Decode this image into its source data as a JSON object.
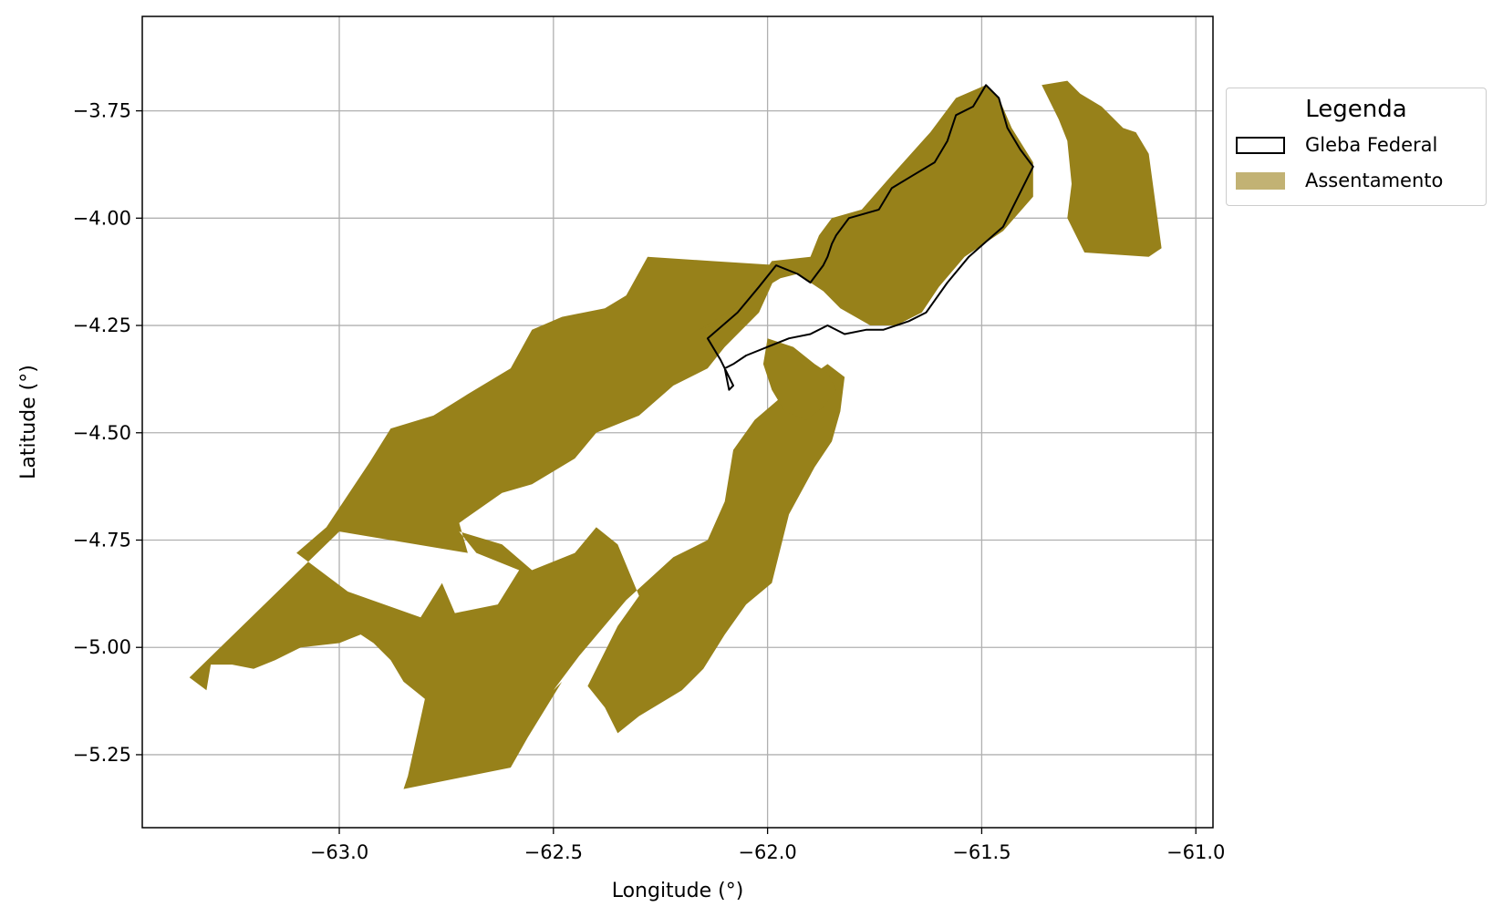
{
  "chart_data": {
    "type": "map",
    "xlabel": "Longitude (°)",
    "ylabel": "Latitude (°)",
    "xlim": [
      -63.46,
      -60.96
    ],
    "ylim": [
      -5.42,
      -3.53
    ],
    "xticks": [
      -63.0,
      -62.5,
      -62.0,
      -61.5,
      -61.0
    ],
    "xtick_labels": [
      "−63.0",
      "−62.5",
      "−62.0",
      "−61.5",
      "−61.0"
    ],
    "yticks": [
      -3.75,
      -4.0,
      -4.25,
      -4.5,
      -4.75,
      -5.0,
      -5.25
    ],
    "ytick_labels": [
      "−3.75",
      "−4.00",
      "−4.25",
      "−4.50",
      "−4.75",
      "−5.00",
      "−5.25"
    ],
    "grid": true,
    "legend": {
      "title": "Legenda",
      "placement": "outside-right",
      "items": [
        {
          "label": "Gleba Federal",
          "style": "outline",
          "color": "#000000"
        },
        {
          "label": "Assentamento",
          "style": "fill",
          "color": "#97811A"
        }
      ]
    },
    "layers": [
      {
        "name": "Assentamento",
        "fill": "#97811A",
        "polygons": [
          [
            [
              -63.35,
              -5.07
            ],
            [
              -63.31,
              -5.1
            ],
            [
              -63.3,
              -5.04
            ],
            [
              -63.25,
              -5.04
            ],
            [
              -63.2,
              -5.05
            ],
            [
              -63.15,
              -5.03
            ],
            [
              -63.09,
              -5.0
            ],
            [
              -63.0,
              -4.99
            ],
            [
              -62.95,
              -4.97
            ],
            [
              -62.92,
              -4.99
            ],
            [
              -62.88,
              -5.03
            ],
            [
              -62.85,
              -5.08
            ],
            [
              -62.8,
              -5.12
            ],
            [
              -62.84,
              -5.3
            ],
            [
              -62.85,
              -5.33
            ],
            [
              -62.6,
              -5.28
            ],
            [
              -62.56,
              -5.21
            ],
            [
              -62.48,
              -5.08
            ],
            [
              -62.5,
              -5.1
            ],
            [
              -62.44,
              -5.02
            ],
            [
              -62.33,
              -4.89
            ],
            [
              -62.22,
              -4.79
            ],
            [
              -62.14,
              -4.75
            ],
            [
              -62.1,
              -4.66
            ],
            [
              -62.08,
              -4.54
            ],
            [
              -62.03,
              -4.47
            ],
            [
              -61.96,
              -4.41
            ],
            [
              -61.86,
              -4.34
            ],
            [
              -61.82,
              -4.37
            ],
            [
              -61.83,
              -4.45
            ],
            [
              -61.85,
              -4.52
            ],
            [
              -61.89,
              -4.58
            ],
            [
              -61.95,
              -4.69
            ],
            [
              -61.99,
              -4.85
            ],
            [
              -62.05,
              -4.9
            ],
            [
              -62.1,
              -4.97
            ],
            [
              -62.15,
              -5.05
            ],
            [
              -62.2,
              -5.1
            ],
            [
              -62.3,
              -5.16
            ],
            [
              -62.35,
              -5.2
            ],
            [
              -62.38,
              -5.14
            ],
            [
              -62.42,
              -5.09
            ],
            [
              -62.35,
              -4.95
            ],
            [
              -62.3,
              -4.88
            ],
            [
              -62.35,
              -4.76
            ],
            [
              -62.4,
              -4.72
            ],
            [
              -62.45,
              -4.78
            ],
            [
              -62.55,
              -4.82
            ],
            [
              -62.62,
              -4.76
            ],
            [
              -62.72,
              -4.73
            ],
            [
              -62.68,
              -4.78
            ],
            [
              -62.58,
              -4.82
            ],
            [
              -62.63,
              -4.9
            ],
            [
              -62.73,
              -4.92
            ],
            [
              -62.76,
              -4.85
            ],
            [
              -62.81,
              -4.93
            ],
            [
              -62.98,
              -4.87
            ],
            [
              -63.1,
              -4.78
            ],
            [
              -63.03,
              -4.72
            ],
            [
              -62.93,
              -4.57
            ],
            [
              -62.88,
              -4.49
            ],
            [
              -62.78,
              -4.46
            ],
            [
              -62.7,
              -4.41
            ],
            [
              -62.6,
              -4.35
            ],
            [
              -62.55,
              -4.26
            ],
            [
              -62.48,
              -4.23
            ],
            [
              -62.38,
              -4.21
            ],
            [
              -62.33,
              -4.18
            ],
            [
              -62.28,
              -4.09
            ],
            [
              -62.13,
              -4.1
            ],
            [
              -61.97,
              -4.11
            ],
            [
              -62.02,
              -4.22
            ],
            [
              -62.1,
              -4.3
            ],
            [
              -62.14,
              -4.35
            ],
            [
              -62.22,
              -4.39
            ],
            [
              -62.3,
              -4.46
            ],
            [
              -62.4,
              -4.5
            ],
            [
              -62.45,
              -4.56
            ],
            [
              -62.55,
              -4.62
            ],
            [
              -62.62,
              -4.64
            ],
            [
              -62.72,
              -4.71
            ],
            [
              -62.7,
              -4.78
            ],
            [
              -63.0,
              -4.73
            ],
            [
              -63.35,
              -5.07
            ]
          ],
          [
            [
              -62.16,
              -4.26
            ],
            [
              -62.06,
              -4.2
            ],
            [
              -61.99,
              -4.1
            ],
            [
              -61.9,
              -4.09
            ],
            [
              -61.88,
              -4.04
            ],
            [
              -61.85,
              -4.0
            ],
            [
              -61.78,
              -3.98
            ],
            [
              -61.71,
              -3.9
            ],
            [
              -61.62,
              -3.8
            ],
            [
              -61.56,
              -3.72
            ],
            [
              -61.49,
              -3.69
            ],
            [
              -61.46,
              -3.72
            ],
            [
              -61.43,
              -3.79
            ],
            [
              -61.38,
              -3.87
            ],
            [
              -61.38,
              -3.95
            ],
            [
              -61.45,
              -4.03
            ],
            [
              -61.54,
              -4.09
            ],
            [
              -61.6,
              -4.16
            ],
            [
              -61.64,
              -4.22
            ],
            [
              -61.7,
              -4.25
            ],
            [
              -61.76,
              -4.25
            ],
            [
              -61.83,
              -4.21
            ],
            [
              -61.87,
              -4.17
            ],
            [
              -61.9,
              -4.15
            ],
            [
              -61.93,
              -4.13
            ],
            [
              -61.97,
              -4.14
            ],
            [
              -62.02,
              -4.17
            ],
            [
              -62.1,
              -4.24
            ],
            [
              -62.16,
              -4.26
            ]
          ],
          [
            [
              -61.36,
              -3.69
            ],
            [
              -61.3,
              -3.68
            ],
            [
              -61.27,
              -3.71
            ],
            [
              -61.22,
              -3.74
            ],
            [
              -61.17,
              -3.79
            ],
            [
              -61.14,
              -3.8
            ],
            [
              -61.11,
              -3.85
            ],
            [
              -61.08,
              -4.07
            ],
            [
              -61.11,
              -4.09
            ],
            [
              -61.26,
              -4.08
            ],
            [
              -61.3,
              -4.0
            ],
            [
              -61.29,
              -3.92
            ],
            [
              -61.3,
              -3.82
            ],
            [
              -61.32,
              -3.77
            ],
            [
              -61.36,
              -3.69
            ]
          ],
          [
            [
              -62.0,
              -4.28
            ],
            [
              -61.94,
              -4.3
            ],
            [
              -61.89,
              -4.34
            ],
            [
              -61.86,
              -4.36
            ],
            [
              -61.84,
              -4.4
            ],
            [
              -61.87,
              -4.44
            ],
            [
              -61.91,
              -4.47
            ],
            [
              -61.96,
              -4.45
            ],
            [
              -61.99,
              -4.4
            ],
            [
              -62.01,
              -4.34
            ],
            [
              -62.0,
              -4.28
            ]
          ]
        ]
      },
      {
        "name": "Gleba Federal",
        "stroke": "#000000",
        "polygons": [
          [
            [
              -62.14,
              -4.28
            ],
            [
              -62.07,
              -4.22
            ],
            [
              -62.02,
              -4.16
            ],
            [
              -61.98,
              -4.11
            ],
            [
              -61.93,
              -4.13
            ],
            [
              -61.9,
              -4.15
            ],
            [
              -61.87,
              -4.11
            ],
            [
              -61.86,
              -4.09
            ],
            [
              -61.85,
              -4.06
            ],
            [
              -61.84,
              -4.04
            ],
            [
              -61.81,
              -4.0
            ],
            [
              -61.74,
              -3.98
            ],
            [
              -61.71,
              -3.93
            ],
            [
              -61.66,
              -3.9
            ],
            [
              -61.61,
              -3.87
            ],
            [
              -61.58,
              -3.82
            ],
            [
              -61.56,
              -3.76
            ],
            [
              -61.52,
              -3.74
            ],
            [
              -61.49,
              -3.69
            ],
            [
              -61.46,
              -3.72
            ],
            [
              -61.44,
              -3.79
            ],
            [
              -61.41,
              -3.84
            ],
            [
              -61.38,
              -3.88
            ],
            [
              -61.41,
              -3.94
            ],
            [
              -61.45,
              -4.02
            ],
            [
              -61.53,
              -4.09
            ],
            [
              -61.58,
              -4.15
            ],
            [
              -61.63,
              -4.22
            ],
            [
              -61.67,
              -4.24
            ],
            [
              -61.73,
              -4.26
            ],
            [
              -61.77,
              -4.26
            ],
            [
              -61.82,
              -4.27
            ],
            [
              -61.86,
              -4.25
            ],
            [
              -61.9,
              -4.27
            ],
            [
              -61.95,
              -4.28
            ],
            [
              -62.0,
              -4.3
            ],
            [
              -62.05,
              -4.32
            ],
            [
              -62.08,
              -4.34
            ],
            [
              -62.1,
              -4.35
            ],
            [
              -62.09,
              -4.4
            ],
            [
              -62.08,
              -4.39
            ],
            [
              -62.11,
              -4.33
            ],
            [
              -62.14,
              -4.28
            ]
          ]
        ]
      }
    ]
  }
}
